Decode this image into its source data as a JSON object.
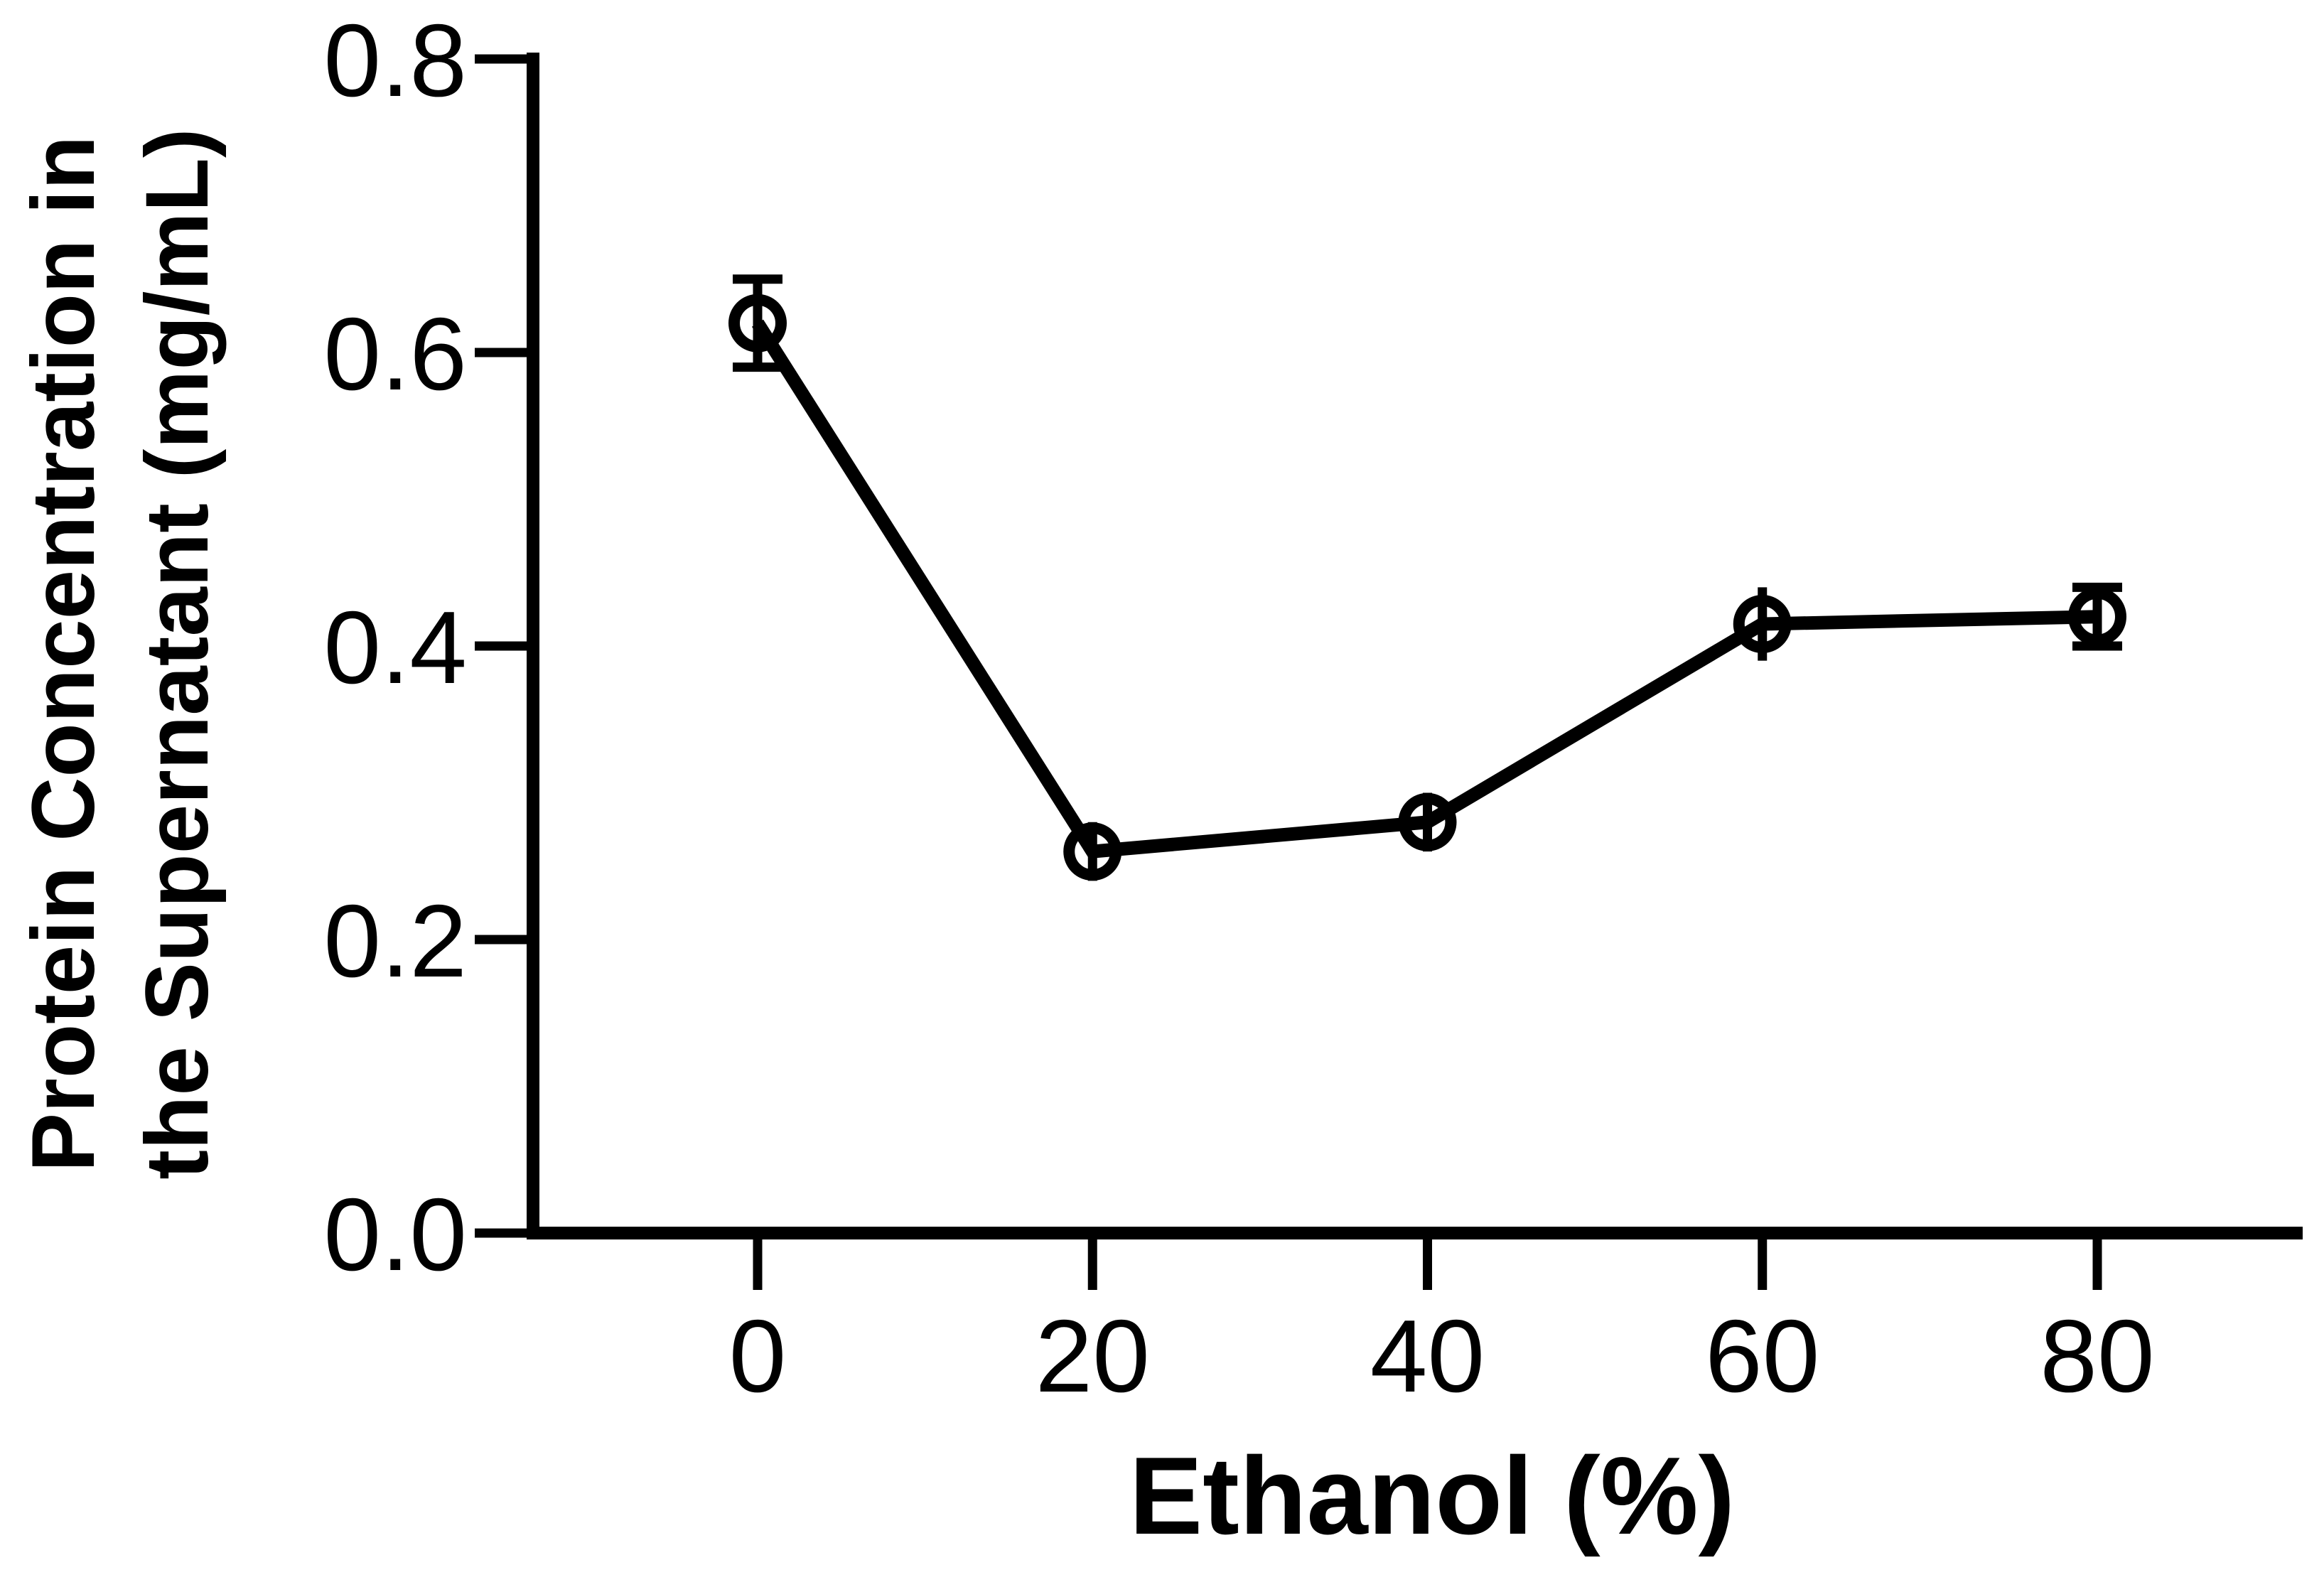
{
  "figure": {
    "background": "#ffffff",
    "ink_color": "#000000"
  },
  "chart_data": {
    "type": "line",
    "title": "",
    "xlabel": "Ethanol (%)",
    "ylabel_line1": "Protein Concentration in",
    "ylabel_line2": "the Supernatant (mg/mL)",
    "x": [
      0,
      20,
      40,
      60,
      80
    ],
    "series": [
      {
        "name": "protein-concentration",
        "values": [
          0.62,
          0.26,
          0.28,
          0.415,
          0.42
        ],
        "errors": [
          0.03,
          0.02,
          0.02,
          0.025,
          0.02
        ],
        "error_caps_visible": [
          true,
          false,
          false,
          false,
          true
        ],
        "marker": "open-circle",
        "color": "#000000"
      }
    ],
    "x_ticks": [
      0,
      20,
      40,
      60,
      80
    ],
    "x_tick_labels": [
      "0",
      "20",
      "40",
      "60",
      "80"
    ],
    "y_ticks": [
      0.0,
      0.2,
      0.4,
      0.6,
      0.8
    ],
    "y_tick_labels": [
      "0.0",
      "0.2",
      "0.4",
      "0.6",
      "0.8"
    ],
    "ylim": [
      0.0,
      0.8
    ],
    "xlim": [
      -13.4,
      92.3
    ],
    "grid": false,
    "legend": null
  }
}
